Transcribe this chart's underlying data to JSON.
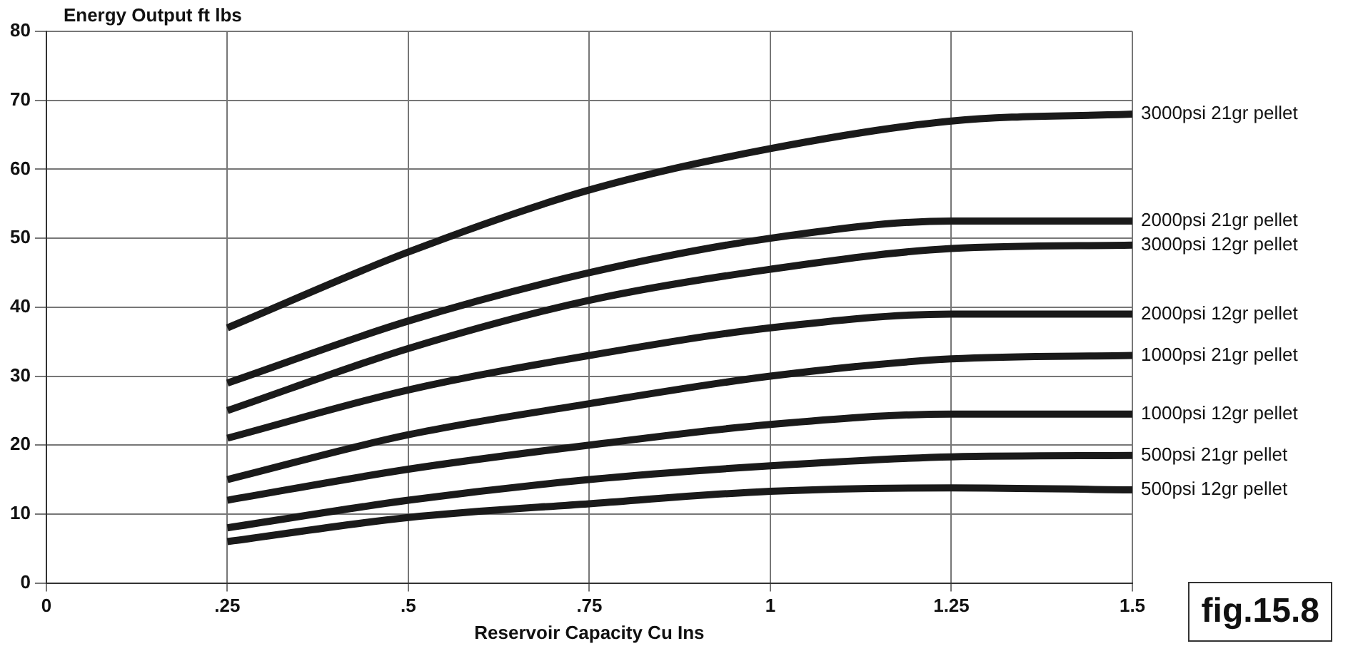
{
  "chart_data": {
    "type": "line",
    "ylabel": "Energy Output ft lbs",
    "xlabel": "Reservoir Capacity Cu Ins",
    "x": [
      0.25,
      0.5,
      0.75,
      1,
      1.25,
      1.5
    ],
    "xlim": [
      0,
      1.5
    ],
    "xticks": [
      0,
      {
        "value": 0.25,
        "label": ".25"
      },
      {
        "value": 0.5,
        "label": ".5"
      },
      {
        "value": 0.75,
        "label": ".75"
      },
      1,
      1.25,
      1.5
    ],
    "ylim": [
      0,
      80
    ],
    "yticks": [
      0,
      10,
      20,
      30,
      40,
      50,
      60,
      70,
      80
    ],
    "grid": true,
    "legend": false,
    "marker": "none",
    "line_style": "solid",
    "series": [
      {
        "name": "3000psi 21gr pellet",
        "color": "#1a1a1a",
        "values": [
          37,
          48,
          57,
          63,
          67,
          68
        ]
      },
      {
        "name": "2000psi 21gr pellet",
        "color": "#1a1a1a",
        "values": [
          29,
          38,
          45,
          50,
          52.5,
          52.5
        ]
      },
      {
        "name": "3000psi 12gr pellet",
        "color": "#1a1a1a",
        "values": [
          25,
          34,
          41,
          45.5,
          48.5,
          49
        ]
      },
      {
        "name": "2000psi 12gr pellet",
        "color": "#1a1a1a",
        "values": [
          21,
          28,
          33,
          37,
          39,
          39
        ]
      },
      {
        "name": "1000psi 21gr pellet",
        "color": "#1a1a1a",
        "values": [
          15,
          21.5,
          26,
          30,
          32.5,
          33
        ]
      },
      {
        "name": "1000psi 12gr pellet",
        "color": "#1a1a1a",
        "values": [
          12,
          16.5,
          20,
          23,
          24.5,
          24.5
        ]
      },
      {
        "name": "500psi 21gr pellet",
        "color": "#1a1a1a",
        "values": [
          8,
          12,
          15,
          17,
          18.3,
          18.5
        ]
      },
      {
        "name": "500psi 12gr pellet",
        "color": "#1a1a1a",
        "values": [
          6,
          9.5,
          11.5,
          13.3,
          13.8,
          13.5
        ]
      }
    ],
    "annotations": [
      "fig.15.8"
    ]
  }
}
